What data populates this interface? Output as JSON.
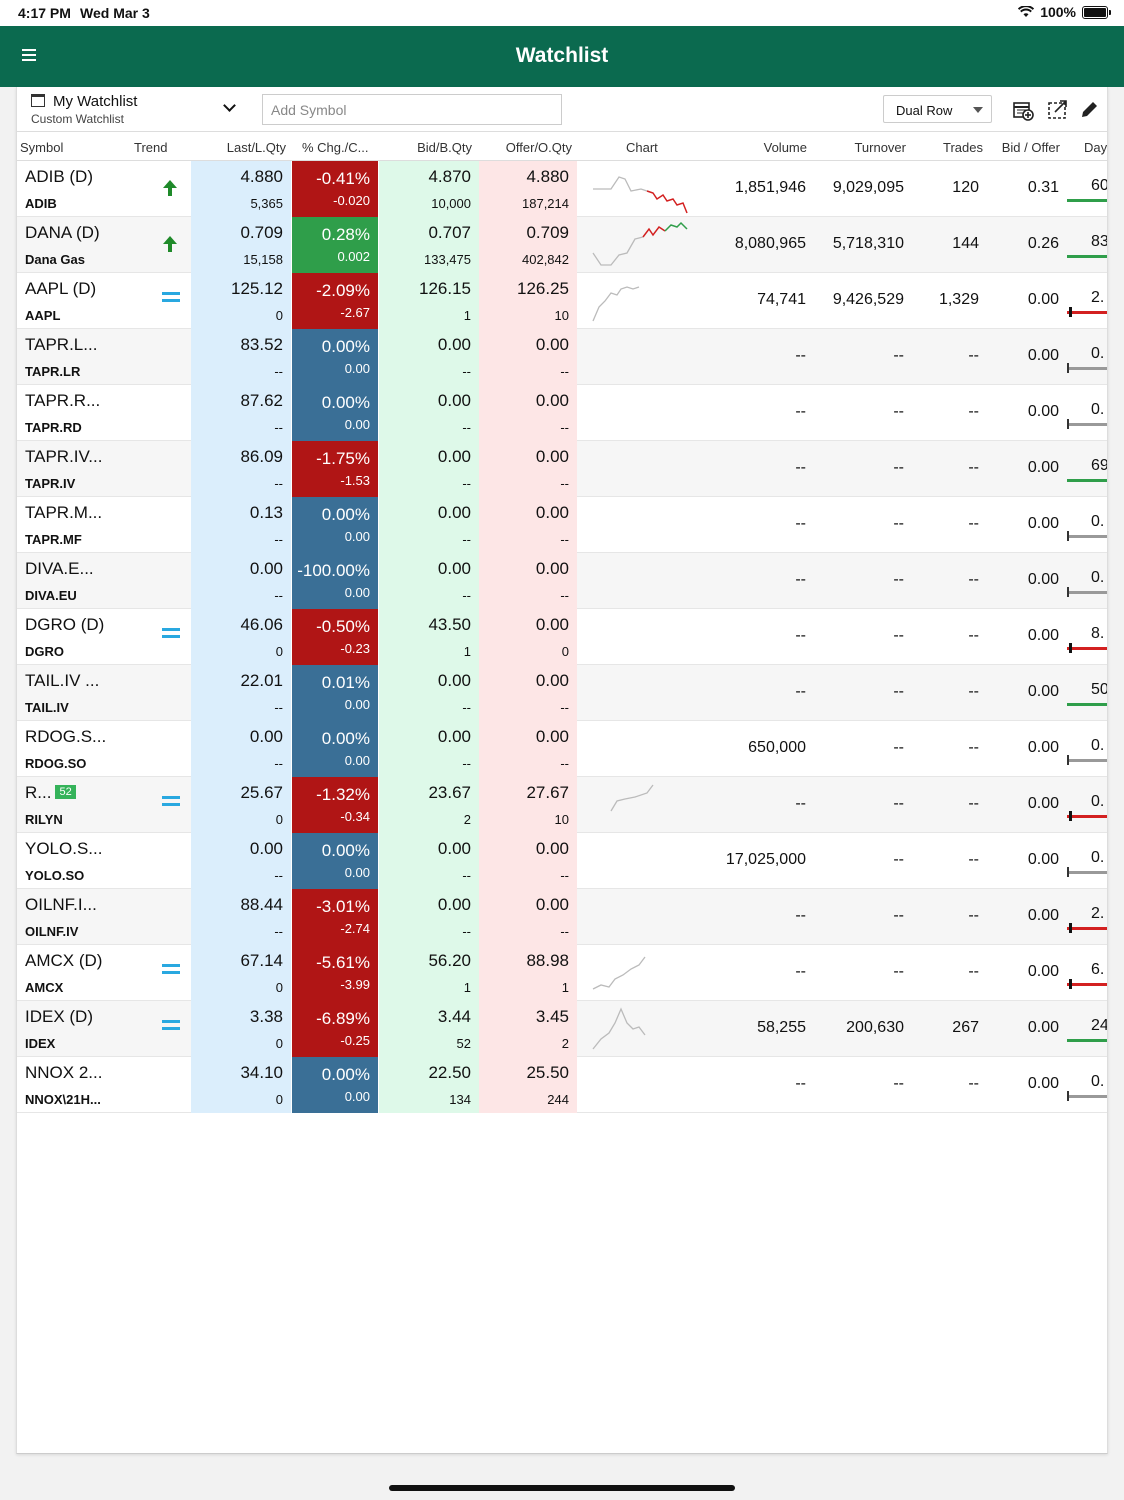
{
  "status_bar": {
    "time": "4:17 PM",
    "date": "Wed Mar 3",
    "battery": "100%"
  },
  "nav": {
    "title": "Watchlist",
    "color": "#0b6a4f"
  },
  "toolbar": {
    "watchlist_name": "My Watchlist",
    "watchlist_sub": "Custom Watchlist",
    "add_symbol_placeholder": "Add Symbol",
    "view_mode": "Dual Row"
  },
  "columns": [
    "Symbol",
    "Trend",
    "Last/L.Qty",
    "% Chg./C...",
    "Bid/B.Qty",
    "Offer/O.Qty",
    "Chart",
    "Volume",
    "Turnover",
    "Trades",
    "Bid / Offer",
    "Day"
  ],
  "rows": [
    {
      "sym": "ADIB (D)",
      "sub": "ADIB",
      "trend": "up",
      "last": "4.880",
      "lqty": "5,365",
      "chg": "-0.41%",
      "chgv": "-0.020",
      "chg_color": "red",
      "bid": "4.870",
      "bqty": "10,000",
      "offer": "4.880",
      "oqty": "187,214",
      "chart": "a",
      "volume": "1,851,946",
      "turnover": "9,029,095",
      "trades": "120",
      "bidoffer": "0.31",
      "day": "60",
      "day_color": "green"
    },
    {
      "sym": "DANA (D)",
      "sub": "Dana Gas",
      "trend": "up",
      "last": "0.709",
      "lqty": "15,158",
      "chg": "0.28%",
      "chgv": "0.002",
      "chg_color": "green",
      "bid": "0.707",
      "bqty": "133,475",
      "offer": "0.709",
      "oqty": "402,842",
      "chart": "b",
      "volume": "8,080,965",
      "turnover": "5,718,310",
      "trades": "144",
      "bidoffer": "0.26",
      "day": "83",
      "day_color": "green"
    },
    {
      "sym": "AAPL (D)",
      "sub": "AAPL",
      "trend": "eq",
      "last": "125.12",
      "lqty": "0",
      "chg": "-2.09%",
      "chgv": "-2.67",
      "chg_color": "red",
      "bid": "126.15",
      "bqty": "1",
      "offer": "126.25",
      "oqty": "10",
      "chart": "c",
      "volume": "74,741",
      "turnover": "9,426,529",
      "trades": "1,329",
      "bidoffer": "0.00",
      "day": "2.",
      "day_color": "red"
    },
    {
      "sym": "TAPR.L...",
      "sub": "TAPR.LR",
      "trend": "",
      "last": "83.52",
      "lqty": "--",
      "chg": "0.00%",
      "chgv": "0.00",
      "chg_color": "blue",
      "bid": "0.00",
      "bqty": "--",
      "offer": "0.00",
      "oqty": "--",
      "chart": "",
      "volume": "--",
      "turnover": "--",
      "trades": "--",
      "bidoffer": "0.00",
      "day": "0.",
      "day_color": "gray"
    },
    {
      "sym": "TAPR.R...",
      "sub": "TAPR.RD",
      "trend": "",
      "last": "87.62",
      "lqty": "--",
      "chg": "0.00%",
      "chgv": "0.00",
      "chg_color": "blue",
      "bid": "0.00",
      "bqty": "--",
      "offer": "0.00",
      "oqty": "--",
      "chart": "",
      "volume": "--",
      "turnover": "--",
      "trades": "--",
      "bidoffer": "0.00",
      "day": "0.",
      "day_color": "gray"
    },
    {
      "sym": "TAPR.IV...",
      "sub": "TAPR.IV",
      "trend": "",
      "last": "86.09",
      "lqty": "--",
      "chg": "-1.75%",
      "chgv": "-1.53",
      "chg_color": "red",
      "bid": "0.00",
      "bqty": "--",
      "offer": "0.00",
      "oqty": "--",
      "chart": "",
      "volume": "--",
      "turnover": "--",
      "trades": "--",
      "bidoffer": "0.00",
      "day": "69",
      "day_color": "green"
    },
    {
      "sym": "TAPR.M...",
      "sub": "TAPR.MF",
      "trend": "",
      "last": "0.13",
      "lqty": "--",
      "chg": "0.00%",
      "chgv": "0.00",
      "chg_color": "blue",
      "bid": "0.00",
      "bqty": "--",
      "offer": "0.00",
      "oqty": "--",
      "chart": "",
      "volume": "--",
      "turnover": "--",
      "trades": "--",
      "bidoffer": "0.00",
      "day": "0.",
      "day_color": "gray"
    },
    {
      "sym": "DIVA.E...",
      "sub": "DIVA.EU",
      "trend": "",
      "last": "0.00",
      "lqty": "--",
      "chg": "-100.00%",
      "chgv": "0.00",
      "chg_color": "blue",
      "bid": "0.00",
      "bqty": "--",
      "offer": "0.00",
      "oqty": "--",
      "chart": "",
      "volume": "--",
      "turnover": "--",
      "trades": "--",
      "bidoffer": "0.00",
      "day": "0.",
      "day_color": "gray"
    },
    {
      "sym": "DGRO (D)",
      "sub": "DGRO",
      "trend": "eq",
      "last": "46.06",
      "lqty": "0",
      "chg": "-0.50%",
      "chgv": "-0.23",
      "chg_color": "red",
      "bid": "43.50",
      "bqty": "1",
      "offer": "0.00",
      "oqty": "0",
      "chart": "",
      "volume": "--",
      "turnover": "--",
      "trades": "--",
      "bidoffer": "0.00",
      "day": "8.",
      "day_color": "red"
    },
    {
      "sym": "TAIL.IV ...",
      "sub": "TAIL.IV",
      "trend": "",
      "last": "22.01",
      "lqty": "--",
      "chg": "0.01%",
      "chgv": "0.00",
      "chg_color": "blue",
      "bid": "0.00",
      "bqty": "--",
      "offer": "0.00",
      "oqty": "--",
      "chart": "",
      "volume": "--",
      "turnover": "--",
      "trades": "--",
      "bidoffer": "0.00",
      "day": "50",
      "day_color": "green"
    },
    {
      "sym": "RDOG.S...",
      "sub": "RDOG.SO",
      "trend": "",
      "last": "0.00",
      "lqty": "--",
      "chg": "0.00%",
      "chgv": "0.00",
      "chg_color": "blue",
      "bid": "0.00",
      "bqty": "--",
      "offer": "0.00",
      "oqty": "--",
      "chart": "",
      "volume": "650,000",
      "turnover": "--",
      "trades": "--",
      "bidoffer": "0.00",
      "day": "0.",
      "day_color": "gray"
    },
    {
      "sym": "R...",
      "badge": "52",
      "sub": "RILYN",
      "trend": "eq",
      "last": "25.67",
      "lqty": "0",
      "chg": "-1.32%",
      "chgv": "-0.34",
      "chg_color": "red",
      "bid": "23.67",
      "bqty": "2",
      "offer": "27.67",
      "oqty": "10",
      "chart": "d",
      "volume": "--",
      "turnover": "--",
      "trades": "--",
      "bidoffer": "0.00",
      "day": "0.",
      "day_color": "red"
    },
    {
      "sym": "YOLO.S...",
      "sub": "YOLO.SO",
      "trend": "",
      "last": "0.00",
      "lqty": "--",
      "chg": "0.00%",
      "chgv": "0.00",
      "chg_color": "blue",
      "bid": "0.00",
      "bqty": "--",
      "offer": "0.00",
      "oqty": "--",
      "chart": "",
      "volume": "17,025,000",
      "turnover": "--",
      "trades": "--",
      "bidoffer": "0.00",
      "day": "0.",
      "day_color": "gray"
    },
    {
      "sym": "OILNF.I...",
      "sub": "OILNF.IV",
      "trend": "",
      "last": "88.44",
      "lqty": "--",
      "chg": "-3.01%",
      "chgv": "-2.74",
      "chg_color": "red",
      "bid": "0.00",
      "bqty": "--",
      "offer": "0.00",
      "oqty": "--",
      "chart": "",
      "volume": "--",
      "turnover": "--",
      "trades": "--",
      "bidoffer": "0.00",
      "day": "2.",
      "day_color": "red"
    },
    {
      "sym": "AMCX (D)",
      "sub": "AMCX",
      "trend": "eq",
      "last": "67.14",
      "lqty": "0",
      "chg": "-5.61%",
      "chgv": "-3.99",
      "chg_color": "red",
      "bid": "56.20",
      "bqty": "1",
      "offer": "88.98",
      "oqty": "1",
      "chart": "e",
      "volume": "--",
      "turnover": "--",
      "trades": "--",
      "bidoffer": "0.00",
      "day": "6.",
      "day_color": "red"
    },
    {
      "sym": "IDEX (D)",
      "sub": "IDEX",
      "trend": "eq",
      "last": "3.38",
      "lqty": "0",
      "chg": "-6.89%",
      "chgv": "-0.25",
      "chg_color": "red",
      "bid": "3.44",
      "bqty": "52",
      "offer": "3.45",
      "oqty": "2",
      "chart": "f",
      "volume": "58,255",
      "turnover": "200,630",
      "trades": "267",
      "bidoffer": "0.00",
      "day": "24",
      "day_color": "green"
    },
    {
      "sym": "NNOX 2...",
      "sub": "NNOX\\21H...",
      "trend": "",
      "last": "34.10",
      "lqty": "0",
      "chg": "0.00%",
      "chgv": "0.00",
      "chg_color": "blue",
      "bid": "22.50",
      "bqty": "134",
      "offer": "25.50",
      "oqty": "244",
      "chart": "",
      "volume": "--",
      "turnover": "--",
      "trades": "--",
      "bidoffer": "0.00",
      "day": "0.",
      "day_color": "gray"
    }
  ]
}
